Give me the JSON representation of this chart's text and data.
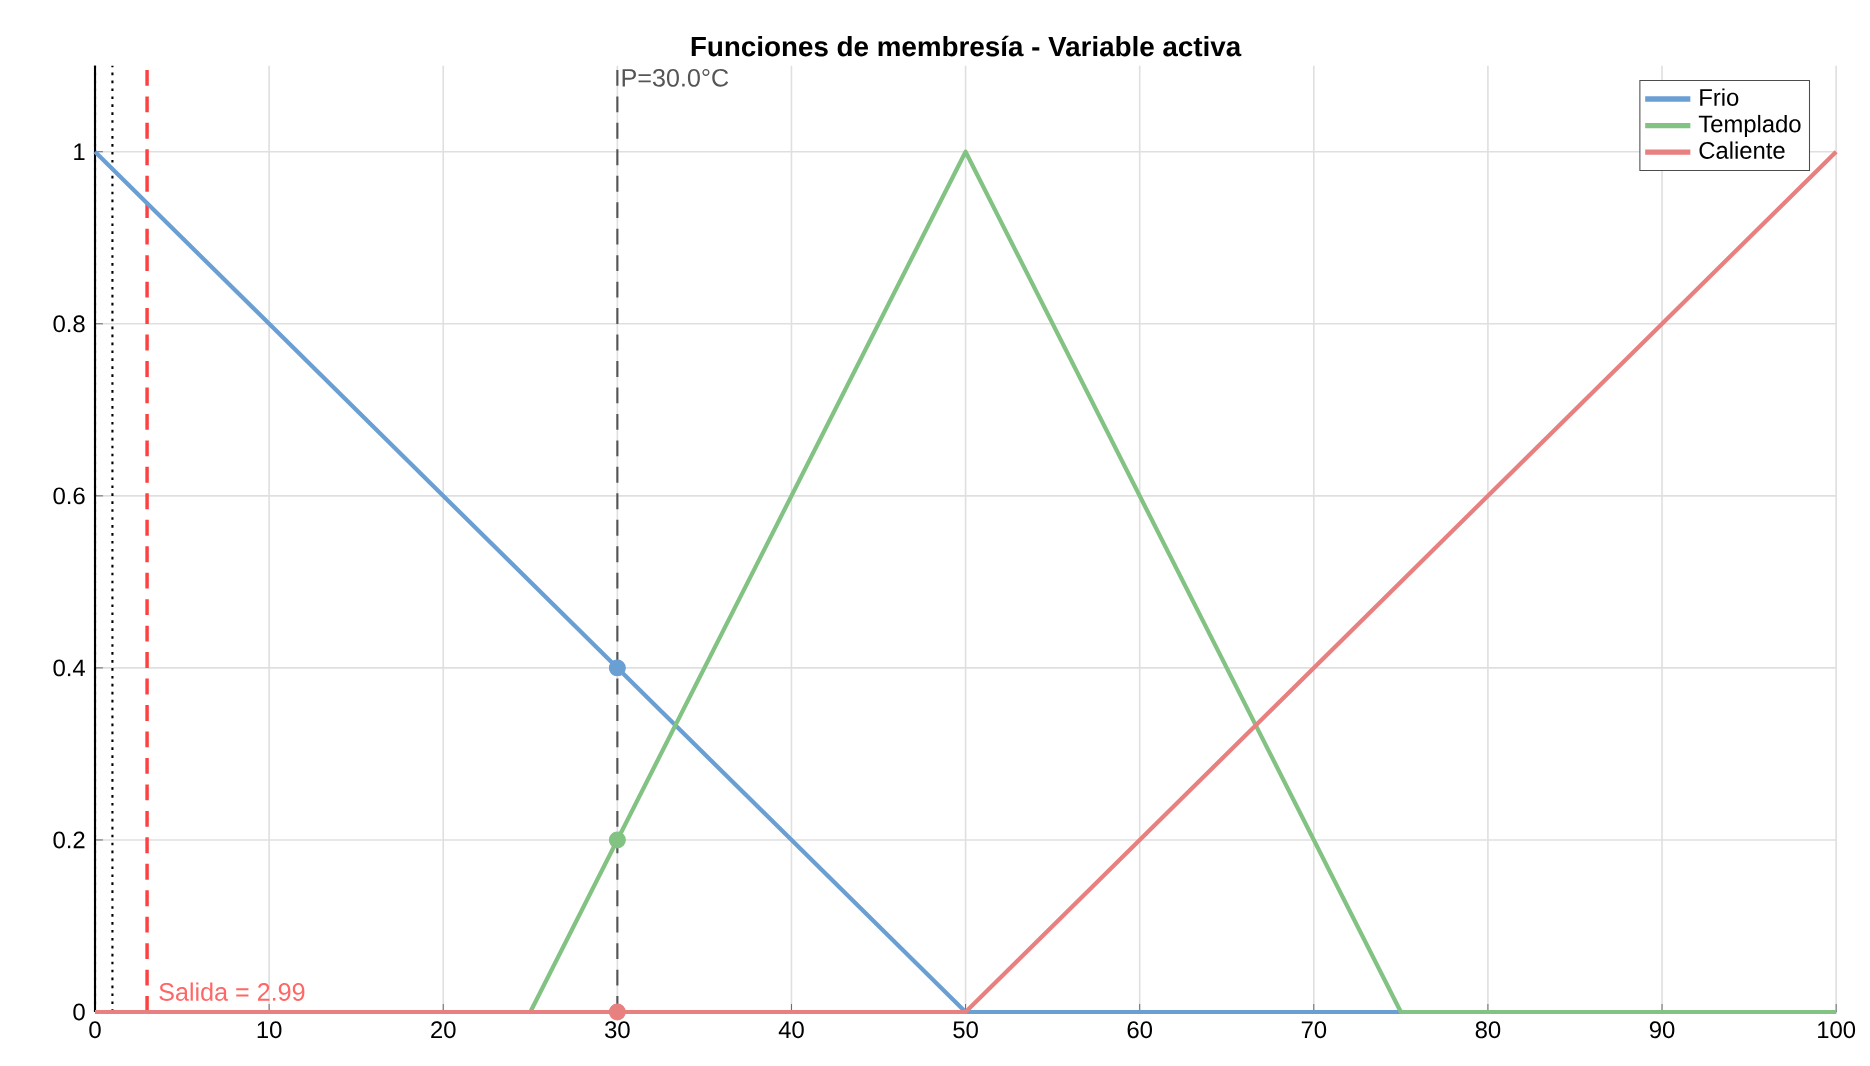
{
  "chart_data": {
    "type": "line",
    "title": "Funciones de membresía - Variable activa",
    "xlim": [
      0,
      100
    ],
    "ylim": [
      0,
      1.1
    ],
    "xticks": [
      0,
      10,
      20,
      30,
      40,
      50,
      60,
      70,
      80,
      90,
      100
    ],
    "yticks": [
      0,
      0.2,
      0.4,
      0.6,
      0.8,
      1
    ],
    "grid": true,
    "legend": "top right",
    "line_style": "solid",
    "series": [
      {
        "name": "Frio",
        "color": "#6a9fd4",
        "x": [
          0,
          50,
          100
        ],
        "values": [
          1,
          0,
          0
        ]
      },
      {
        "name": "Templado",
        "color": "#82c283",
        "x": [
          0,
          25,
          50,
          75,
          100
        ],
        "values": [
          0,
          0,
          1,
          0,
          0
        ]
      },
      {
        "name": "Caliente",
        "color": "#e88080",
        "x": [
          0,
          50,
          100
        ],
        "values": [
          0,
          0,
          1
        ]
      },
      {
        "type": "scatter",
        "color": "#6a9fd4",
        "x": [
          30
        ],
        "values": [
          0.4
        ]
      },
      {
        "type": "scatter",
        "color": "#82c283",
        "x": [
          30
        ],
        "values": [
          0.2
        ]
      },
      {
        "type": "scatter",
        "color": "#e88080",
        "x": [
          30
        ],
        "values": [
          0
        ]
      }
    ],
    "ref_lines": [
      {
        "axis": "x",
        "value": 0,
        "color": "#000000",
        "line_style": "dotted"
      },
      {
        "axis": "x",
        "value": 1,
        "color": "#000000",
        "line_style": "dotted"
      },
      {
        "axis": "x",
        "value": 2.99,
        "color": "#ff4040",
        "line_style": "dashed"
      },
      {
        "axis": "x",
        "value": 30,
        "color": "#555555",
        "line_style": "dashed",
        "label": "P=30.0°C"
      }
    ],
    "annotations": [
      {
        "text": "Salida = 2.99",
        "x": 2.99,
        "y": 0
      }
    ]
  }
}
